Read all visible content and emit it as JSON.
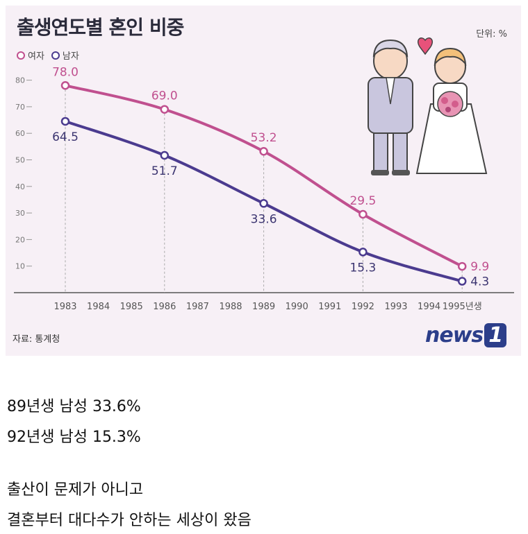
{
  "header": {
    "title": "출생연도별 혼인 비중",
    "unit": "단위: %",
    "source": "자료: 통계청",
    "brand_prefix": "news",
    "brand_box": "1"
  },
  "chart_data": {
    "type": "line",
    "title": "출생연도별 혼인 비중",
    "x": [
      "1983",
      "1984",
      "1985",
      "1986",
      "1987",
      "1988",
      "1989",
      "1990",
      "1991",
      "1992",
      "1993",
      "1994",
      "1995년생"
    ],
    "ylim": [
      0,
      85
    ],
    "yticks": [
      10,
      20,
      30,
      40,
      50,
      60,
      70,
      80
    ],
    "legend_position": "top-left",
    "series": [
      {
        "name": "여자",
        "color": "#c0508f",
        "points": [
          {
            "x": "1983",
            "y": 78.0,
            "label": "78.0"
          },
          {
            "x": "1986",
            "y": 69.0,
            "label": "69.0"
          },
          {
            "x": "1989",
            "y": 53.2,
            "label": "53.2"
          },
          {
            "x": "1992",
            "y": 29.5,
            "label": "29.5"
          },
          {
            "x": "1995년생",
            "y": 9.9,
            "label": "9.9"
          }
        ]
      },
      {
        "name": "남자",
        "color": "#4b3b8f",
        "points": [
          {
            "x": "1983",
            "y": 64.5,
            "label": "64.5"
          },
          {
            "x": "1986",
            "y": 51.7,
            "label": "51.7"
          },
          {
            "x": "1989",
            "y": 33.6,
            "label": "33.6"
          },
          {
            "x": "1992",
            "y": 15.3,
            "label": "15.3"
          },
          {
            "x": "1995년생",
            "y": 4.3,
            "label": "4.3"
          }
        ]
      }
    ]
  },
  "captions": [
    "89년생 남성 33.6%",
    "92년생 남성 15.3%",
    "출산이 문제가 아니고",
    "결혼부터 대다수가 안하는 세상이 왔음"
  ]
}
